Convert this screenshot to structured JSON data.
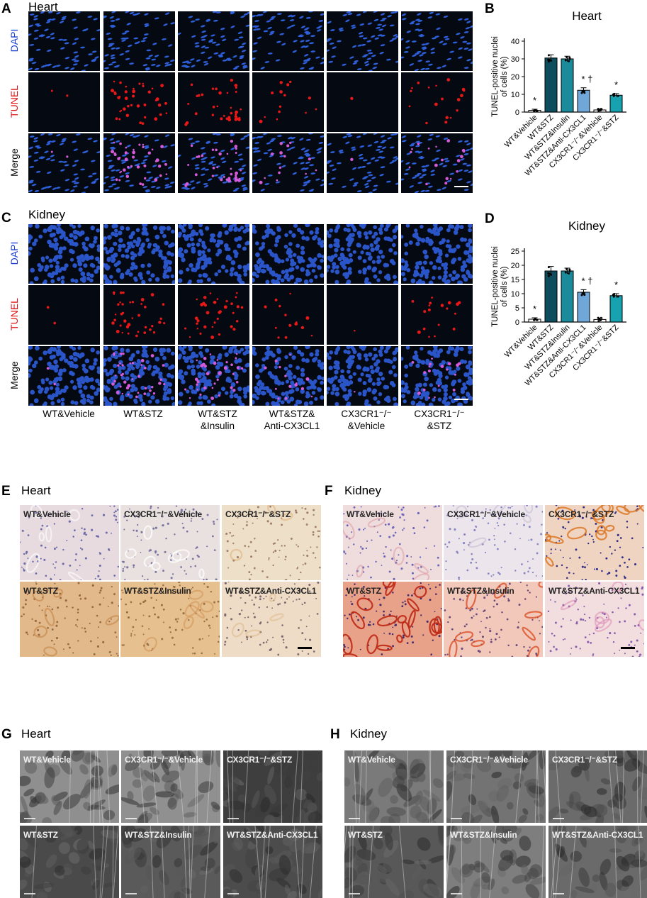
{
  "panels": {
    "A": {
      "letter": "A",
      "title": "Heart"
    },
    "B": {
      "letter": "B",
      "title": "Heart"
    },
    "C": {
      "letter": "C",
      "title": "Kidney"
    },
    "D": {
      "letter": "D",
      "title": "Kidney"
    },
    "E": {
      "letter": "E",
      "title": "Heart"
    },
    "F": {
      "letter": "F",
      "title": "Kidney"
    },
    "G": {
      "letter": "G",
      "title": "Heart"
    },
    "H": {
      "letter": "H",
      "title": "Kidney"
    }
  },
  "stain_rows": [
    "DAPI",
    "TUNEL",
    "Merge"
  ],
  "stain_colors": {
    "DAPI": "#1a3fd0",
    "TUNEL": "#e01010",
    "Merge": "#000000"
  },
  "group_labels": [
    {
      "line1": "WT&Vehicle",
      "line2": ""
    },
    {
      "line1": "WT&STZ",
      "line2": ""
    },
    {
      "line1": "WT&STZ",
      "line2": "&Insulin"
    },
    {
      "line1": "WT&STZ&",
      "line2": "Anti-CX3CL1"
    },
    {
      "line1": "CX3CR1⁻/⁻",
      "line2": "&Vehicle"
    },
    {
      "line1": "CX3CR1⁻/⁻",
      "line2": "&STZ"
    }
  ],
  "ihc_heart": [
    "WT&Vehicle",
    "CX3CR1⁻/⁻&Vehicle",
    "CX3CR1⁻/⁻&STZ",
    "WT&STZ",
    "WT&STZ&Insulin",
    "WT&STZ&Anti-CX3CL1"
  ],
  "ihc_kidney": [
    "WT&Vehicle",
    "CX3CR1⁻/⁻&Vehicle",
    "CX3CR1⁻/⁻&STZ",
    "WT&STZ",
    "WT&STZ&Insulin",
    "WT&STZ&Anti-CX3CL1"
  ],
  "tem_heart": [
    "WT&Vehicle",
    "CX3CR1⁻/⁻&Vehicle",
    "CX3CR1⁻/⁻&STZ",
    "WT&STZ",
    "WT&STZ&Insulin",
    "WT&STZ&Anti-CX3CL1"
  ],
  "tem_kidney": [
    "WT&Vehicle",
    "CX3CR1⁻/⁻&Vehicle",
    "CX3CR1⁻/⁻&STZ",
    "WT&STZ",
    "WT&STZ&Insulin",
    "WT&STZ&Anti-CX3CL1"
  ],
  "chart_data": [
    {
      "type": "bar",
      "title": "Heart",
      "ylabel": "TUNEL-positive nuclei of cells (%)",
      "ylim": [
        0,
        40
      ],
      "yticks": [
        0,
        10,
        20,
        30,
        40
      ],
      "categories": [
        "WT&Vehicle",
        "WT&STZ",
        "WT&STZ&Insulin",
        "WT&STZ&Anti-CX3CL1",
        "CX3CR1⁻/⁻&Vehicle",
        "CX3CR1⁻/⁻&STZ"
      ],
      "values": [
        1.0,
        30.5,
        30.0,
        12.3,
        1.2,
        9.5
      ],
      "errors": [
        0.6,
        1.8,
        1.5,
        1.4,
        0.5,
        0.9
      ],
      "annotations": [
        "*",
        "",
        "",
        "* †",
        "",
        "*"
      ],
      "colors": [
        "#ffffff",
        "#0e4d5e",
        "#1b8a9a",
        "#6fa7d8",
        "#ffffff",
        "#18a2b0"
      ]
    },
    {
      "type": "bar",
      "title": "Kidney",
      "ylabel": "TUNEL-positive nuclei of cells (%)",
      "ylim": [
        0,
        25
      ],
      "yticks": [
        0,
        5,
        10,
        15,
        20,
        25
      ],
      "categories": [
        "WT&Vehicle",
        "WT&STZ",
        "WT&STZ&Insulin",
        "WT&STZ&Anti-CX3CL1",
        "CX3CR1⁻/⁻&Vehicle",
        "CX3CR1⁻/⁻&STZ"
      ],
      "values": [
        1.0,
        18.0,
        18.0,
        10.5,
        0.9,
        9.3
      ],
      "errors": [
        0.5,
        1.6,
        1.0,
        0.9,
        0.5,
        0.7
      ],
      "annotations": [
        "*",
        "",
        "",
        "* †",
        "",
        "*"
      ],
      "colors": [
        "#ffffff",
        "#0e4d5e",
        "#1b8a9a",
        "#6fa7d8",
        "#ffffff",
        "#18a2b0"
      ]
    }
  ]
}
